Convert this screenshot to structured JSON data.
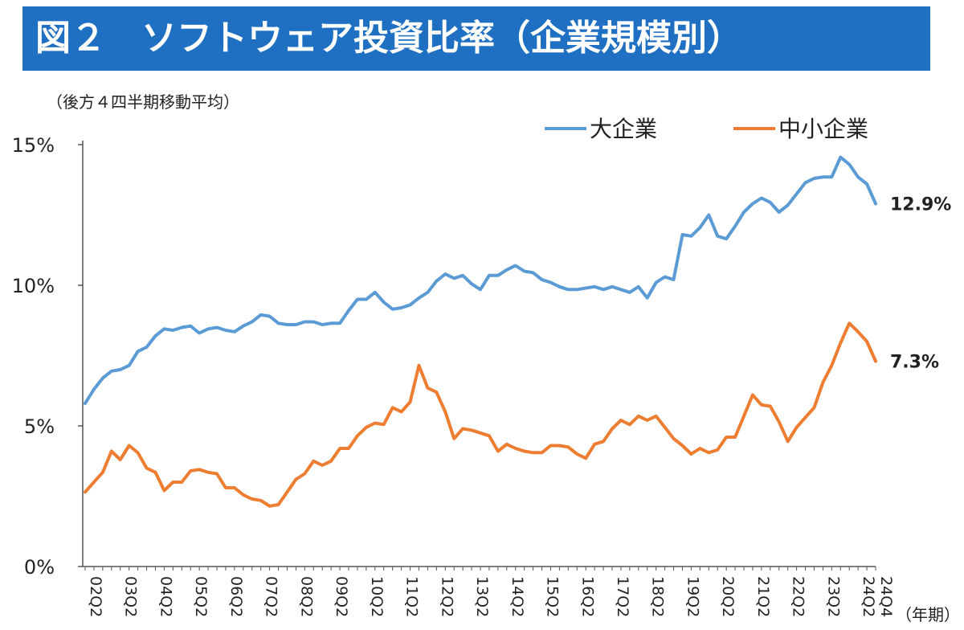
{
  "header": {
    "title": "図２　ソフトウェア投資比率（企業規模別）"
  },
  "chart_data": {
    "type": "line",
    "title": "図２　ソフトウェア投資比率（企業規模別）",
    "subtitle": "（後方４四半期移動平均）",
    "xlabel": "（年期）",
    "ylabel": "",
    "ylim": [
      0,
      15
    ],
    "yticks": [
      0,
      5,
      10,
      15
    ],
    "ytick_labels": [
      "0%",
      "5%",
      "10%",
      "15%"
    ],
    "x_start": "02Q2",
    "x_end": "24Q4",
    "x_tick_labels": [
      "02Q2",
      "03Q2",
      "04Q2",
      "05Q2",
      "06Q2",
      "07Q2",
      "08Q2",
      "09Q2",
      "10Q2",
      "11Q2",
      "12Q2",
      "13Q2",
      "14Q2",
      "15Q2",
      "16Q2",
      "17Q2",
      "18Q2",
      "19Q2",
      "20Q2",
      "21Q2",
      "22Q2",
      "23Q2",
      "24Q2",
      "24Q4"
    ],
    "legend_position": "top-right",
    "grid": false,
    "series": [
      {
        "name": "大企業",
        "color": "#5b9bd5",
        "end_label": "12.9%",
        "values": [
          5.8,
          6.3,
          6.7,
          6.95,
          7.0,
          7.15,
          7.65,
          7.8,
          8.2,
          8.45,
          8.4,
          8.5,
          8.55,
          8.3,
          8.45,
          8.5,
          8.4,
          8.35,
          8.55,
          8.7,
          8.95,
          8.9,
          8.65,
          8.6,
          8.6,
          8.7,
          8.7,
          8.6,
          8.65,
          8.65,
          9.1,
          9.5,
          9.5,
          9.75,
          9.4,
          9.15,
          9.2,
          9.3,
          9.55,
          9.75,
          10.15,
          10.4,
          10.25,
          10.35,
          10.05,
          9.85,
          10.35,
          10.35,
          10.55,
          10.7,
          10.5,
          10.45,
          10.2,
          10.1,
          9.95,
          9.85,
          9.85,
          9.9,
          9.95,
          9.85,
          9.95,
          9.85,
          9.75,
          9.95,
          9.55,
          10.1,
          10.3,
          10.2,
          11.8,
          11.75,
          12.05,
          12.5,
          11.75,
          11.65,
          12.1,
          12.6,
          12.9,
          13.1,
          12.95,
          12.6,
          12.85,
          13.25,
          13.65,
          13.8,
          13.85,
          13.85,
          14.55,
          14.3,
          13.85,
          13.6,
          12.9
        ]
      },
      {
        "name": "中小企業",
        "color": "#ed7d31",
        "end_label": "7.3%",
        "values": [
          2.65,
          3.0,
          3.35,
          4.1,
          3.8,
          4.3,
          4.05,
          3.5,
          3.35,
          2.7,
          3.0,
          3.0,
          3.4,
          3.45,
          3.35,
          3.3,
          2.8,
          2.8,
          2.55,
          2.4,
          2.35,
          2.15,
          2.2,
          2.65,
          3.1,
          3.3,
          3.75,
          3.6,
          3.75,
          4.2,
          4.2,
          4.65,
          4.95,
          5.1,
          5.05,
          5.65,
          5.5,
          5.85,
          7.15,
          6.35,
          6.2,
          5.5,
          4.55,
          4.9,
          4.85,
          4.75,
          4.65,
          4.1,
          4.35,
          4.2,
          4.1,
          4.05,
          4.05,
          4.3,
          4.3,
          4.25,
          4.0,
          3.85,
          4.35,
          4.45,
          4.9,
          5.2,
          5.05,
          5.35,
          5.2,
          5.35,
          4.95,
          4.55,
          4.3,
          4.0,
          4.2,
          4.05,
          4.15,
          4.6,
          4.6,
          5.35,
          6.1,
          5.75,
          5.7,
          5.15,
          4.45,
          4.95,
          5.3,
          5.65,
          6.55,
          7.15,
          7.95,
          8.65,
          8.35,
          8.0,
          7.3
        ]
      }
    ]
  }
}
